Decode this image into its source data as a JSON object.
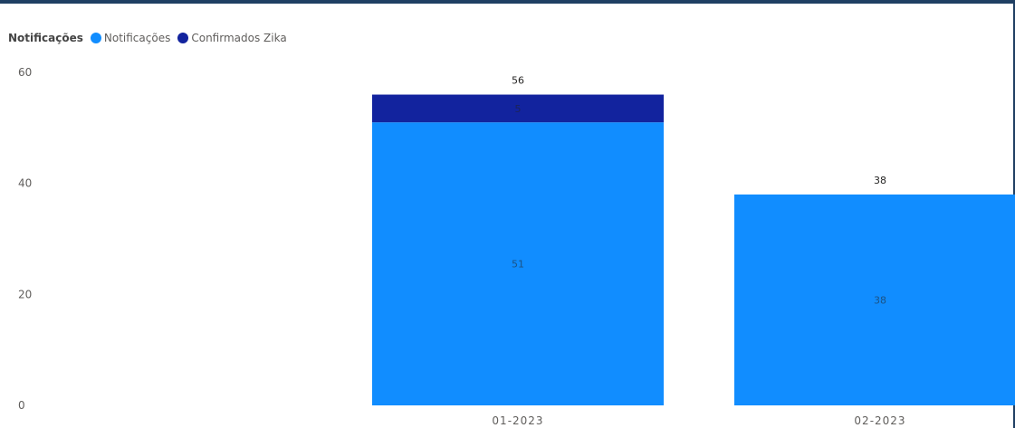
{
  "legend": {
    "title": "Notificações",
    "items": [
      {
        "label": "Notificações",
        "color": "#118dff"
      },
      {
        "label": "Confirmados Zika",
        "color": "#12239e"
      }
    ]
  },
  "chart_data": {
    "type": "bar",
    "stacked": true,
    "categories": [
      "01-2023",
      "02-2023"
    ],
    "series": [
      {
        "name": "Notificações",
        "color": "#118dff",
        "values": [
          51,
          38
        ]
      },
      {
        "name": "Confirmados Zika",
        "color": "#12239e",
        "values": [
          5,
          null
        ]
      }
    ],
    "totals": [
      56,
      38
    ],
    "ylim": [
      0,
      60
    ],
    "yticks": [
      0,
      20,
      40,
      60
    ],
    "grid": false,
    "legend_position": "top-left"
  }
}
